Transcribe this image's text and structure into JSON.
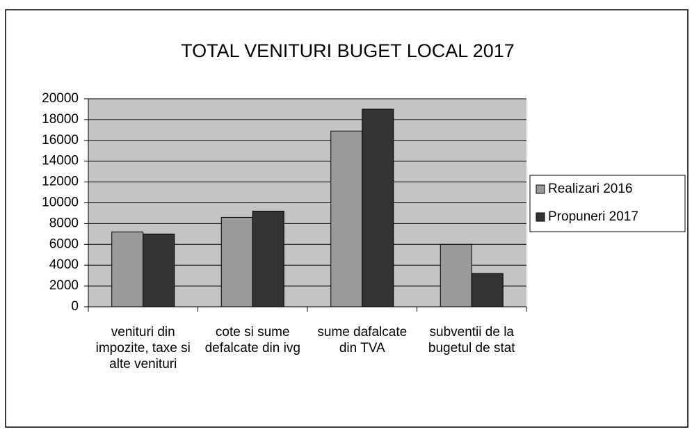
{
  "chart_data": {
    "type": "bar",
    "title": "TOTAL VENITURI BUGET LOCAL 2017",
    "categories": [
      "venituri din impozite, taxe si alte venituri",
      "cote si sume defalcate din ivg",
      "sume dafalcate din TVA",
      "subventii de la bugetul de stat"
    ],
    "series": [
      {
        "name": "Realizari 2016",
        "color": "#9a9a9a",
        "values": [
          7200,
          8600,
          16900,
          6000
        ]
      },
      {
        "name": "Propuneri 2017",
        "color": "#333333",
        "values": [
          7000,
          9200,
          19000,
          3200
        ]
      }
    ],
    "ylim": [
      0,
      20000
    ],
    "yticks": [
      0,
      2000,
      4000,
      6000,
      8000,
      10000,
      12000,
      14000,
      16000,
      18000,
      20000
    ],
    "grid": true,
    "legend": "right"
  }
}
